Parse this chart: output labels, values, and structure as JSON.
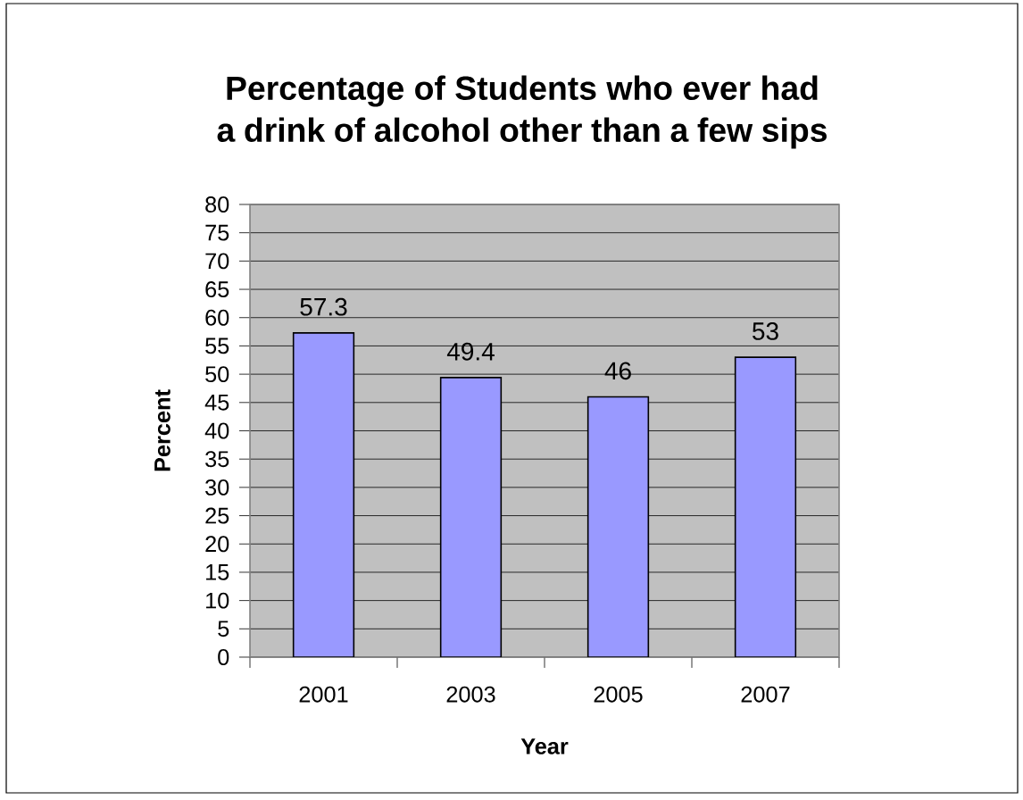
{
  "chart_data": {
    "type": "bar",
    "title": "Percentage of Students who ever had a drink of alcohol other than a few sips",
    "xlabel": "Year",
    "ylabel": "Percent",
    "categories": [
      "2001",
      "2003",
      "2005",
      "2007"
    ],
    "values": [
      57.3,
      49.4,
      46,
      53
    ],
    "color": "#9999ff",
    "ylim": [
      0,
      80
    ],
    "yticks": [
      0,
      5,
      10,
      15,
      20,
      25,
      30,
      35,
      40,
      45,
      50,
      55,
      60,
      65,
      70,
      75,
      80
    ],
    "grid": "y",
    "data_labels": true
  }
}
